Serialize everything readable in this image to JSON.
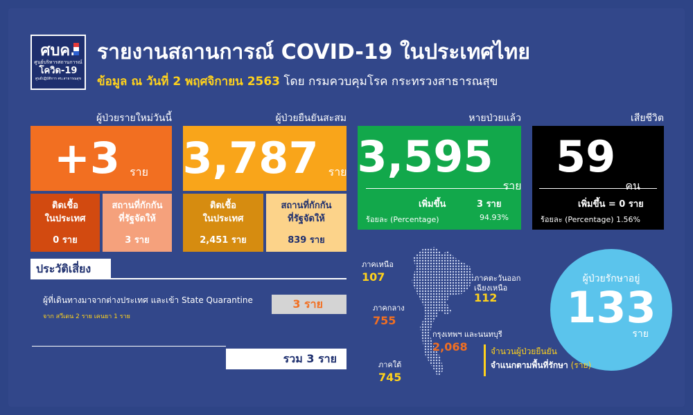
{
  "logo": {
    "line1": "ศบค.",
    "line2": "ศูนย์บริหารสถานการณ์",
    "line3": "โควิด-19",
    "line4": "ศูนย์ปฏิบัติการ ศบ.สาธารณสุข"
  },
  "header": {
    "title": "รายงานสถานการณ์ COVID-19 ในประเทศไทย",
    "date_label": "ข้อมูล ณ วันที่ 2 พฤศจิกายน 2563",
    "source": "โดย กรมควบคุมโรค กระทรวงสาธารณสุข"
  },
  "new_cases": {
    "caption": "ผู้ป่วยรายใหม่วันนี้",
    "value": "+3",
    "unit": "ราย",
    "local_label": "ติดเชื้อ\nในประเทศ",
    "local_value": "0 ราย",
    "quarantine_label": "สถานที่กักกัน\nที่รัฐจัดให้",
    "quarantine_value": "3 ราย",
    "color_main": "#f26f21",
    "color_sub1": "#d24a10",
    "color_sub2": "#f5a17c"
  },
  "cumulative": {
    "caption": "ผู้ป่วยยืนยันสะสม",
    "value": "3,787",
    "unit": "ราย",
    "local_label": "ติดเชื้อ\nในประเทศ",
    "local_value": "2,451 ราย",
    "quarantine_label": "สถานที่กักกัน\nที่รัฐจัดให้",
    "quarantine_value": "839 ราย",
    "color_main": "#f9a51a",
    "color_sub1": "#d68c10",
    "color_sub2": "#fcd38a"
  },
  "recovered": {
    "caption": "หายป่วยแล้ว",
    "value": "3,595",
    "unit": "ราย",
    "increase_label": "เพิ่มขึ้น",
    "increase_value": "3 ราย",
    "pct_label": "ร้อยละ (Percentage)",
    "pct_value": "94.93%",
    "color": "#12a84b"
  },
  "deaths": {
    "caption": "เสียชีวิต",
    "value": "59",
    "unit": "คน",
    "increase_text": "เพิ่มขึ้น = 0 ราย",
    "pct_text": "ร้อยละ (Percentage) 1.56%",
    "color": "#000000"
  },
  "risk": {
    "heading": "ประวัติเสี่ยง",
    "text": "ผู้ที่เดินทางมาจากต่างประเทศ และเข้า State Quarantine",
    "detail": "จาก สวีเดน 2 ราย เคนยา 1 ราย",
    "value": "3 ราย",
    "total": "รวม 3 ราย"
  },
  "regions": {
    "north": {
      "label": "ภาคเหนือ",
      "value": "107"
    },
    "northeast": {
      "label": "ภาคตะวันออก\nเฉียงเหนือ",
      "value": "112"
    },
    "central": {
      "label": "ภาคกลาง",
      "value": "755"
    },
    "bangkok": {
      "label": "กรุงเทพฯ และนนทบุรี",
      "value": "2,068"
    },
    "south": {
      "label": "ภาคใต้",
      "value": "745"
    }
  },
  "treating": {
    "label": "ผู้ป่วยรักษาอยู่",
    "value": "133",
    "unit": "ราย",
    "color": "#5bc4ec"
  },
  "legend": {
    "line1": "จำนวนผู้ป่วยยืนยัน",
    "line2_bold": "จำแนกตามพื้นที่รักษา",
    "line2_unit": "(ราย)"
  },
  "colors": {
    "background": "#2e4486",
    "accent_orange": "#f26f21",
    "accent_yellow": "#ffd21c"
  }
}
